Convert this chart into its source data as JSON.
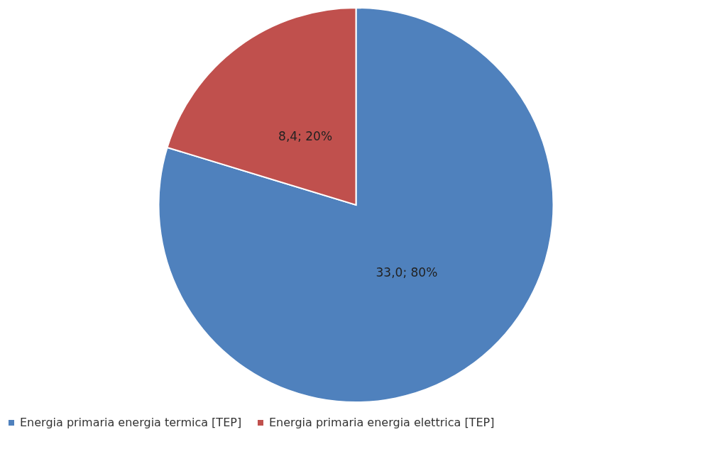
{
  "chart_data": {
    "type": "pie",
    "categories": [
      "Energia primaria energia termica [TEP]",
      "Energia primaria energia elettrica [TEP]"
    ],
    "values": [
      33.0,
      8.4
    ],
    "colors": [
      "#4f81bd",
      "#c0504d"
    ],
    "value_labels": [
      "33,0; 80%",
      "8,4; 20%"
    ],
    "legend": "bottom"
  }
}
